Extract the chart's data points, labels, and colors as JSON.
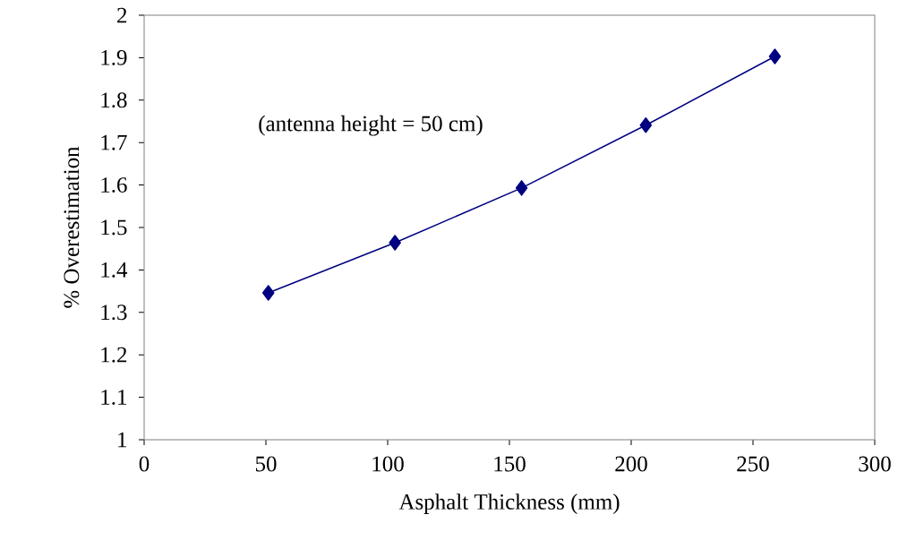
{
  "chart_data": {
    "type": "line",
    "xlabel": "Asphalt Thickness (mm)",
    "ylabel": "% Overestimation",
    "annotations": [
      "(antenna height = 50 cm)"
    ],
    "x": [
      51,
      103,
      155,
      206,
      259
    ],
    "series": [
      {
        "color": "#000080",
        "values": [
          1.346,
          1.464,
          1.593,
          1.741,
          1.903
        ]
      }
    ],
    "xlim": [
      0,
      300
    ],
    "xticks": [
      0,
      50,
      100,
      150,
      200,
      250,
      300
    ],
    "ylim": [
      1,
      2
    ],
    "yticks": [
      1,
      1.1,
      1.2,
      1.3,
      1.4,
      1.5,
      1.6,
      1.7,
      1.8,
      1.9,
      2
    ],
    "marker": "diamond",
    "line_style": "solid"
  }
}
